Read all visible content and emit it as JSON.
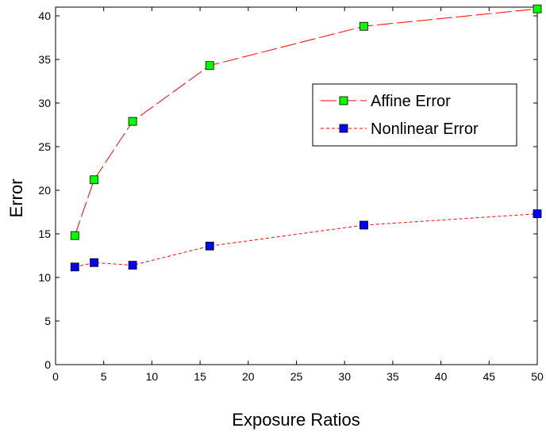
{
  "chart_data": {
    "type": "line",
    "xlabel": "Exposure Ratios",
    "ylabel": "Error",
    "xlim": [
      0,
      50
    ],
    "ylim": [
      0,
      41
    ],
    "xticks": [
      0,
      5,
      10,
      15,
      20,
      25,
      30,
      35,
      40,
      45,
      50
    ],
    "yticks": [
      0,
      5,
      10,
      15,
      20,
      25,
      30,
      35,
      40
    ],
    "grid": false,
    "legend_position": "upper-right",
    "series": [
      {
        "name": "Affine Error",
        "line_color": "#ff0000",
        "line_style": "long-dash",
        "marker_color": "#00ff00",
        "marker": "square",
        "x": [
          2,
          4,
          8,
          16,
          32,
          50
        ],
        "y": [
          14.8,
          21.2,
          27.9,
          34.3,
          38.8,
          40.8
        ]
      },
      {
        "name": "Nonlinear Error",
        "line_color": "#ff0000",
        "line_style": "short-dash",
        "marker_color": "#0000ff",
        "marker": "square",
        "x": [
          2,
          4,
          8,
          16,
          32,
          50
        ],
        "y": [
          11.2,
          11.7,
          11.4,
          13.6,
          16.0,
          17.3
        ]
      }
    ]
  }
}
